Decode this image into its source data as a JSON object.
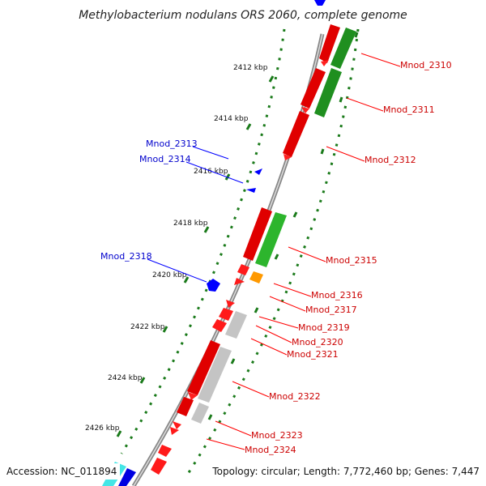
{
  "title": "Methylobacterium nodulans ORS 2060, complete genome",
  "accession": "Accession: NC_011894",
  "topology": "Topology: circular; Length: 7,772,460 bp; Genes: 7,447",
  "colors": {
    "forward": "#ff0000",
    "reverse": "#0000ff",
    "rna": "#2db52d",
    "pseudo": "#bbbbbb",
    "other": "#ff9900",
    "tick": "#1a7a1a",
    "backbone": "#888888"
  },
  "ticks": [
    "2412 kbp",
    "2414 kbp",
    "2416 kbp",
    "2418 kbp",
    "2420 kbp",
    "2422 kbp",
    "2424 kbp",
    "2426 kbp"
  ],
  "labels_right": [
    "Mnod_2310",
    "Mnod_2311",
    "Mnod_2312",
    "Mnod_2315",
    "Mnod_2316",
    "Mnod_2317",
    "Mnod_2319",
    "Mnod_2320",
    "Mnod_2321",
    "Mnod_2322",
    "Mnod_2323",
    "Mnod_2324"
  ],
  "labels_left": [
    "Mnod_2313",
    "Mnod_2314",
    "Mnod_2318"
  ]
}
